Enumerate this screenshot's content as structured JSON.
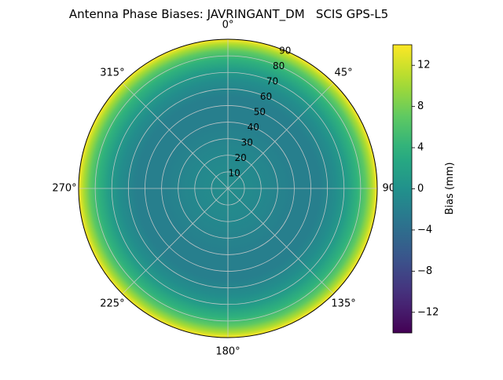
{
  "background": "#ffffff",
  "chart_data": {
    "type": "heatmap",
    "subtype": "polar",
    "title": "Antenna Phase Biases: JAVRINGANT_DM   SCIS GPS-L5",
    "colormap": "viridis",
    "clim": [
      -14,
      14
    ],
    "theta_degrees": [
      0,
      45,
      90,
      135,
      180,
      225,
      270,
      315
    ],
    "theta_labels": [
      "0°",
      "45°",
      "90°",
      "135°",
      "180°",
      "225°",
      "270°",
      "315°"
    ],
    "radial_ticks": [
      10,
      20,
      30,
      40,
      50,
      60,
      70,
      80,
      90
    ],
    "radial_max": 90,
    "radial_label_angle_deg": 22.5,
    "radial_profile": {
      "zenith_deg": [
        0,
        20,
        40,
        55,
        65,
        72,
        78,
        83,
        87,
        90
      ],
      "bias_mm": [
        -0.5,
        -1,
        -2,
        -2,
        -0.5,
        1.5,
        4,
        7,
        10.5,
        14
      ]
    },
    "colorbar": {
      "label": "Bias (mm)",
      "ticks": [
        -12,
        -8,
        -4,
        0,
        4,
        8,
        12
      ]
    },
    "grid_color": "#cccccc",
    "outline_color": "#000000"
  }
}
